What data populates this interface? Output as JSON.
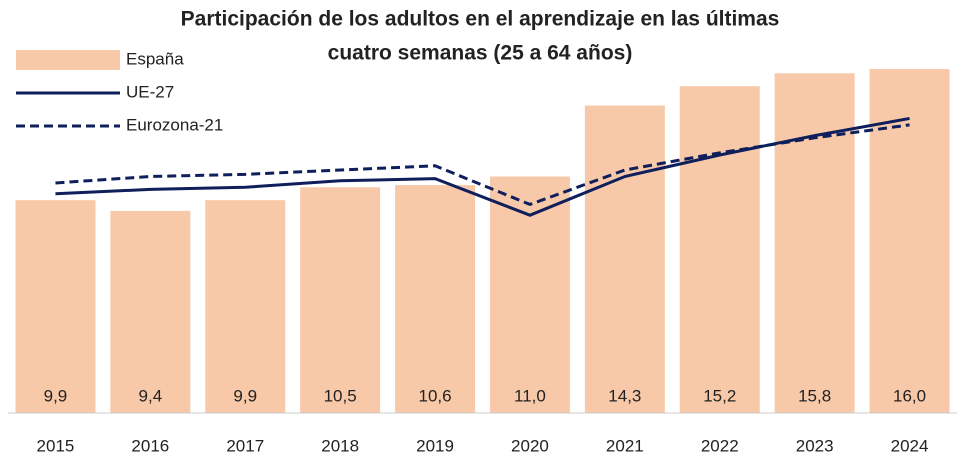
{
  "chart_data": {
    "type": "bar-line",
    "title": [
      "Participación  de los adultos en el aprendizaje  en las últimas",
      "cuatro semanas  (25 a 64 años)"
    ],
    "categories": [
      "2015",
      "2016",
      "2017",
      "2018",
      "2019",
      "2020",
      "2021",
      "2022",
      "2023",
      "2024"
    ],
    "series": [
      {
        "name": "España",
        "type": "bar",
        "color": "#f8c9a9",
        "values": [
          9.9,
          9.4,
          9.9,
          10.5,
          10.6,
          11.0,
          14.3,
          15.2,
          15.8,
          16.0
        ],
        "value_labels": [
          "9,9",
          "9,4",
          "9,9",
          "10,5",
          "10,6",
          "11,0",
          "14,3",
          "15,2",
          "15,8",
          "16,0"
        ]
      },
      {
        "name": "UE-27",
        "type": "line",
        "dash": false,
        "color": "#0f1f5c",
        "values": [
          10.2,
          10.4,
          10.5,
          10.8,
          10.9,
          9.2,
          11.0,
          12.0,
          12.9,
          13.7
        ]
      },
      {
        "name": "Eurozona-21",
        "type": "line",
        "dash": true,
        "color": "#0f1f5c",
        "values": [
          10.7,
          11.0,
          11.1,
          11.3,
          11.5,
          9.7,
          11.3,
          12.1,
          12.8,
          13.4
        ]
      }
    ],
    "ylim": [
      0,
      18
    ]
  }
}
